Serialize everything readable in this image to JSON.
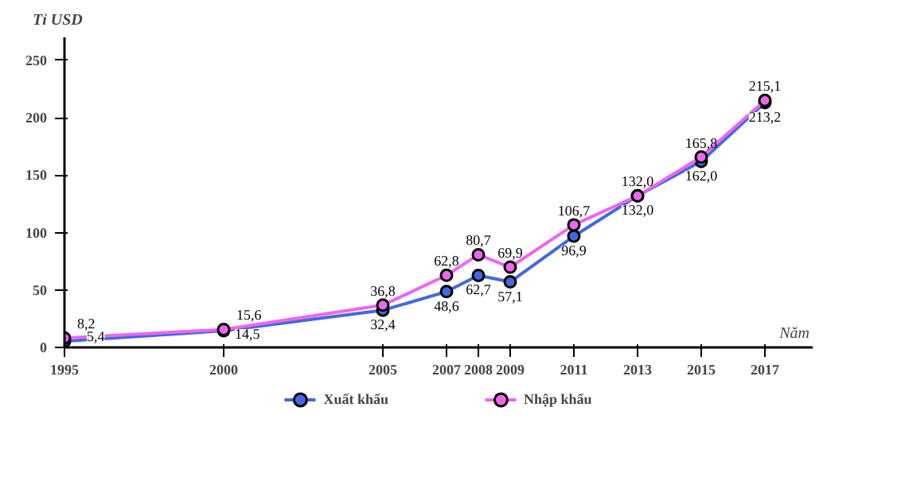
{
  "chart_data": {
    "type": "line",
    "ylabel": "Tỉ USD",
    "xlabel": "Năm",
    "x": [
      1995,
      2000,
      2005,
      2007,
      2008,
      2009,
      2011,
      2013,
      2015,
      2017
    ],
    "xlim": [
      1995,
      2018.5
    ],
    "xticks": [
      1995,
      2000,
      2005,
      2007,
      2008,
      2009,
      2011,
      2013,
      2015,
      2017
    ],
    "ylim": [
      0,
      270
    ],
    "yticks": [
      0,
      50,
      100,
      150,
      200,
      250
    ],
    "series": [
      {
        "name": "Xuất khẩu",
        "color": "#4169e1",
        "values": [
          5.4,
          14.5,
          32.4,
          48.6,
          62.7,
          57.1,
          96.9,
          132.0,
          162.0,
          213.2
        ],
        "value_labels": [
          "5,4",
          "14,5",
          "32,4",
          "48,6",
          "62,7",
          "57,1",
          "96,9",
          "132,0",
          "162,0",
          "213,2"
        ]
      },
      {
        "name": "Nhập khẩu",
        "color": "#ee66ee",
        "values": [
          8.2,
          15.6,
          36.8,
          62.8,
          80.7,
          69.9,
          106.7,
          132.0,
          165.8,
          215.1
        ],
        "value_labels": [
          "8,2",
          "15,6",
          "36,8",
          "62,8",
          "80,7",
          "69,9",
          "106,7",
          "132,0",
          "165,8",
          "215,1"
        ]
      }
    ],
    "marker": "circle",
    "line_style": "solid",
    "grid": false,
    "legend": "bottom"
  }
}
